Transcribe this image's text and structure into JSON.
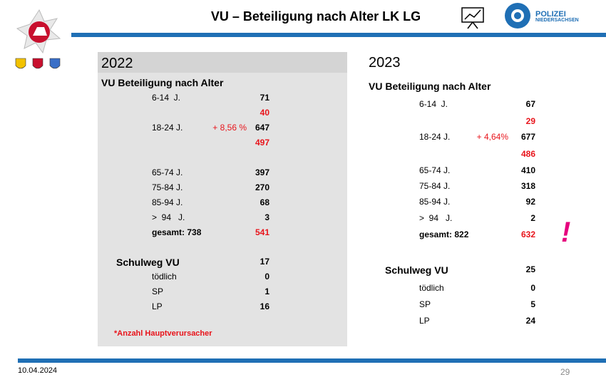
{
  "header": {
    "title": "VU – Beteiligung nach Alter LK LG",
    "logo_line1": "POLIZEI",
    "logo_line2": "NIEDERSACHSEN"
  },
  "panels": [
    {
      "year": "2022",
      "heading": "VU Beteiligung nach Alter",
      "rows": [
        {
          "label": "6-14  J.",
          "value": "71"
        },
        {
          "value": "40",
          "red": true
        },
        {
          "label": "18-24 J.",
          "change": "+ 8,56 %",
          "value": "647"
        },
        {
          "value": "497",
          "red": true
        },
        {
          "label": "65-74 J.",
          "value": "397"
        },
        {
          "label": "75-84 J.",
          "value": "270"
        },
        {
          "label": "85-94 J.",
          "value": "68"
        },
        {
          "label": ">  94   J.",
          "value": "3"
        },
        {
          "label": "gesamt: 738",
          "value": "541",
          "red": true,
          "bold": true
        }
      ],
      "school": [
        {
          "label": "Schulweg VU",
          "value": "17",
          "bold": true
        },
        {
          "label": "tödlich",
          "value": "0"
        },
        {
          "label": "SP",
          "value": "1"
        },
        {
          "label": "LP",
          "value": "16"
        }
      ],
      "note": "*Anzahl Hauptverursacher"
    },
    {
      "year": "2023",
      "heading": "VU Beteiligung nach Alter",
      "rows": [
        {
          "label": "6-14  J.",
          "value": "67"
        },
        {
          "value": "29",
          "red": true
        },
        {
          "label": "18-24 J.",
          "change": "+ 4,64%",
          "value": "677"
        },
        {
          "value": "486",
          "red": true
        },
        {
          "label": "65-74 J.",
          "value": "410"
        },
        {
          "label": "75-84 J.",
          "value": "318"
        },
        {
          "label": "85-94 J.",
          "value": "92"
        },
        {
          "label": ">  94   J.",
          "value": "2"
        },
        {
          "label": "gesamt: 822",
          "value": "632",
          "red": true,
          "bold": true
        }
      ],
      "school": [
        {
          "label": "Schulweg VU",
          "value": "25",
          "bold": true
        },
        {
          "label": "tödlich",
          "value": "0"
        },
        {
          "label": "SP",
          "value": "5"
        },
        {
          "label": "LP",
          "value": "24"
        }
      ]
    }
  ],
  "exclamation": "!",
  "footer": {
    "date": "10.04.2024",
    "page": "29"
  }
}
